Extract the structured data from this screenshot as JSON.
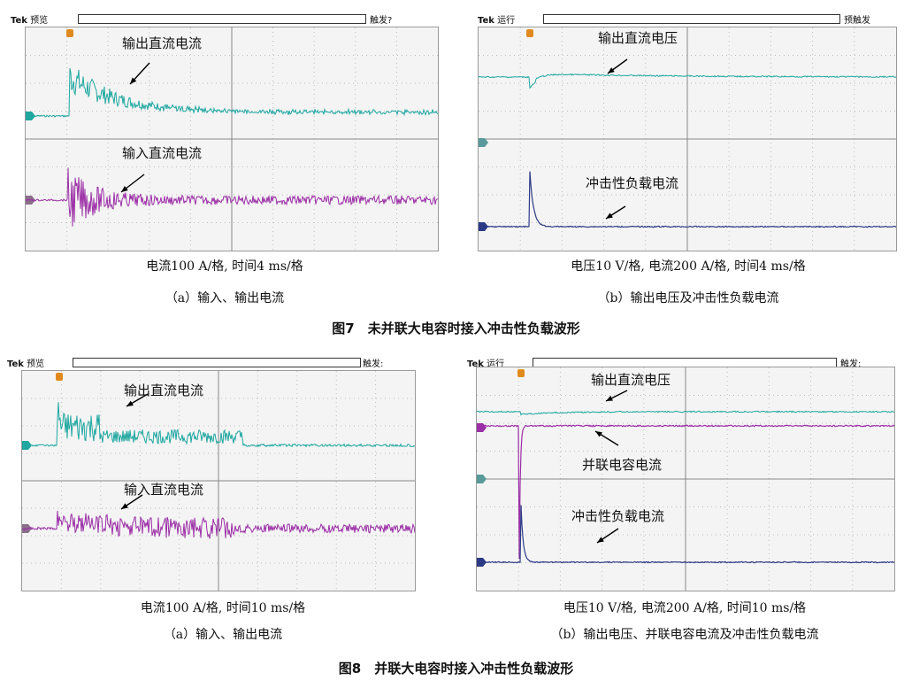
{
  "figure7": {
    "title": "图7　未并联大电容时接入冲击性负载波形",
    "a": {
      "scope_brand": "Tek",
      "scope_mode": "预览",
      "trigger_label": "触发?",
      "label_top": "输出直流电流",
      "label_bottom": "输入直流电流",
      "scale_caption": "电流100 A/格, 时间4 ms/格",
      "subcaption": "（a）输入、输出电流"
    },
    "b": {
      "scope_brand": "Tek",
      "scope_mode": "运行",
      "trigger_label": "预触发",
      "label_top": "输出直流电压",
      "label_bottom": "冲击性负载电流",
      "scale_caption": "电压10 V/格, 电流200 A/格, 时间4 ms/格",
      "subcaption": "（b）输出电压及冲击性负载电流"
    }
  },
  "figure8": {
    "title": "图8　并联大电容时接入冲击性负载波形",
    "a": {
      "scope_brand": "Tek",
      "scope_mode": "预览",
      "trigger_label": "触发:",
      "label_top": "输出直流电流",
      "label_bottom": "输入直流电流",
      "scale_caption": "电流100 A/格, 时间10 ms/格",
      "subcaption": "（a）输入、输出电流"
    },
    "b": {
      "scope_brand": "Tek",
      "scope_mode": "运行",
      "trigger_label": "触发:",
      "label_top": "输出直流电压",
      "label_mid": "并联电容电流",
      "label_bottom": "冲击性负载电流",
      "scale_caption": "电压10 V/格, 电流200 A/格, 时间10 ms/格",
      "subcaption": "（b）输出电压、并联电容电流及冲击性负载电流"
    }
  },
  "colors": {
    "cyan_trace": "#1fa7a0",
    "magenta_trace": "#9b2fa6",
    "navy_trace": "#2c3a86",
    "grid": "#bdbdbd",
    "trigger_marker": "#e08a1e"
  }
}
